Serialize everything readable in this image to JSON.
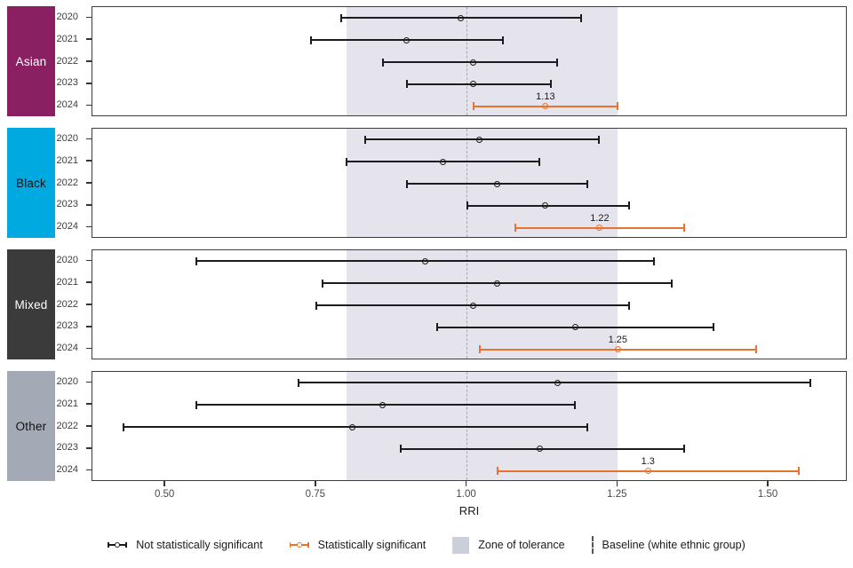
{
  "chart_data": {
    "type": "forest_pointrange",
    "title": "",
    "xlabel": "RRI",
    "x_tick_labels": [
      "0.50",
      "0.75",
      "1.00",
      "1.25",
      "1.50"
    ],
    "x_tick_values": [
      0.5,
      0.75,
      1.0,
      1.25,
      1.5
    ],
    "xlim": [
      0.379,
      1.631
    ],
    "zone_of_tolerance": {
      "from": 0.8,
      "to": 1.25
    },
    "baseline_value": 1.0,
    "years": [
      "2020",
      "2021",
      "2022",
      "2023",
      "2024"
    ],
    "groups": [
      {
        "name": "Asian",
        "strip_color": "#8A1F61",
        "strip_text_color": "#FFFFFF",
        "rows": [
          {
            "year": "2020",
            "est": 0.99,
            "lo": 0.79,
            "hi": 1.19,
            "significant": false
          },
          {
            "year": "2021",
            "est": 0.9,
            "lo": 0.74,
            "hi": 1.06,
            "significant": false
          },
          {
            "year": "2022",
            "est": 1.01,
            "lo": 0.86,
            "hi": 1.15,
            "significant": false
          },
          {
            "year": "2023",
            "est": 1.01,
            "lo": 0.9,
            "hi": 1.14,
            "significant": false
          },
          {
            "year": "2024",
            "est": 1.13,
            "lo": 1.01,
            "hi": 1.25,
            "significant": true,
            "label": "1.13"
          }
        ]
      },
      {
        "name": "Black",
        "strip_color": "#00A9E0",
        "strip_text_color": "#111111",
        "rows": [
          {
            "year": "2020",
            "est": 1.02,
            "lo": 0.83,
            "hi": 1.22,
            "significant": false
          },
          {
            "year": "2021",
            "est": 0.96,
            "lo": 0.8,
            "hi": 1.12,
            "significant": false
          },
          {
            "year": "2022",
            "est": 1.05,
            "lo": 0.9,
            "hi": 1.2,
            "significant": false
          },
          {
            "year": "2023",
            "est": 1.13,
            "lo": 1.0,
            "hi": 1.27,
            "significant": false
          },
          {
            "year": "2024",
            "est": 1.22,
            "lo": 1.08,
            "hi": 1.36,
            "significant": true,
            "label": "1.22"
          }
        ]
      },
      {
        "name": "Mixed",
        "strip_color": "#3B3B3B",
        "strip_text_color": "#FFFFFF",
        "rows": [
          {
            "year": "2020",
            "est": 0.93,
            "lo": 0.55,
            "hi": 1.31,
            "significant": false
          },
          {
            "year": "2021",
            "est": 1.05,
            "lo": 0.76,
            "hi": 1.34,
            "significant": false
          },
          {
            "year": "2022",
            "est": 1.01,
            "lo": 0.75,
            "hi": 1.27,
            "significant": false
          },
          {
            "year": "2023",
            "est": 1.18,
            "lo": 0.95,
            "hi": 1.41,
            "significant": false
          },
          {
            "year": "2024",
            "est": 1.25,
            "lo": 1.02,
            "hi": 1.48,
            "significant": true,
            "label": "1.25"
          }
        ]
      },
      {
        "name": "Other",
        "strip_color": "#A3AAB5",
        "strip_text_color": "#111111",
        "rows": [
          {
            "year": "2020",
            "est": 1.15,
            "lo": 0.72,
            "hi": 1.57,
            "significant": false
          },
          {
            "year": "2021",
            "est": 0.86,
            "lo": 0.55,
            "hi": 1.18,
            "significant": false
          },
          {
            "year": "2022",
            "est": 0.81,
            "lo": 0.43,
            "hi": 1.2,
            "significant": false
          },
          {
            "year": "2023",
            "est": 1.12,
            "lo": 0.89,
            "hi": 1.36,
            "significant": false
          },
          {
            "year": "2024",
            "est": 1.3,
            "lo": 1.05,
            "hi": 1.55,
            "significant": true,
            "label": "1.3"
          }
        ]
      }
    ],
    "legend": {
      "items": [
        {
          "key": "not_significant",
          "label": "Not statistically significant",
          "type": "pointrange",
          "color": "#1C1C1C"
        },
        {
          "key": "significant",
          "label": "Statistically significant",
          "type": "pointrange",
          "color": "#E87330"
        },
        {
          "key": "zone",
          "label": "Zone of tolerance",
          "type": "square",
          "color": "#CBCFDA"
        },
        {
          "key": "baseline",
          "label": "Baseline (white ethnic group)",
          "type": "dashed_line",
          "color": "#555555"
        }
      ],
      "position": "bottom"
    },
    "colors": {
      "not_significant": "#1C1C1C",
      "significant": "#E87330",
      "zone_fill": "#E5E4EC",
      "baseline_line": "#A8A8B0",
      "panel_border": "#3D3D3D",
      "axis_text": "#4A4A4A"
    },
    "layout": {
      "grid": "off",
      "facets": 4,
      "rows_per_facet": 5
    }
  }
}
